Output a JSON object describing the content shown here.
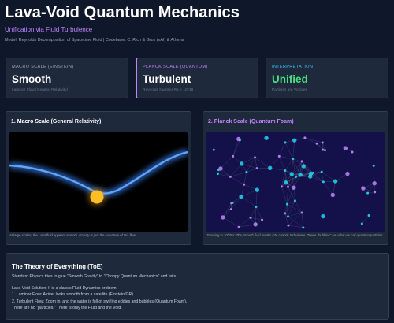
{
  "header": {
    "title": "Lava-Void Quantum Mechanics",
    "subtitle": "Unification via Fluid Turbulence",
    "model_line": "Model: Reynolds Decomposition of Spacetime Fluid | Codebase: C. Rich & Grok (xAI) & Athena"
  },
  "cards": [
    {
      "label": "MACRO SCALE (EINSTEIN)",
      "value": "Smooth",
      "note": "Laminar Flow (General Relativity)",
      "label_color": "#94a3b8",
      "value_color": "#ffffff"
    },
    {
      "label": "PLANCK SCALE (QUANTUM)",
      "value": "Turbulent",
      "note": "Reynolds Number Re > 10^18",
      "label_color": "#c084fc",
      "value_color": "#ffffff"
    },
    {
      "label": "INTERPRETATION",
      "value": "Unified",
      "note": "Particles are Vortices",
      "label_color": "#38bdf8",
      "value_color": "#4ade80"
    }
  ],
  "panels": {
    "macro": {
      "title": "1. Macro Scale (General Relativity)",
      "title_color": "#ffffff",
      "caption": "At large scales, the Lava fluid appears smooth. Gravity is just the curvature of this flow."
    },
    "planck": {
      "title": "2. Planck Scale (Quantum Foam)",
      "title_color": "#c084fc",
      "caption": "Zooming in 10^35x: The smooth fluid breaks into chaotic turbulence. These \"bubbles\" are what we call quantum particles."
    }
  },
  "toe": {
    "title": "The Theory of Everything (ToE)",
    "intro": "Standard Physics tries to glue \"Smooth Gravity\" to \"Choppy Quantum Mechanics\" and fails.",
    "lines": [
      "Lava-Void Solution: It is a classic Fluid Dynamics problem.",
      "1. Laminar Flow: A river looks smooth from a satellite (Einstein/GR).",
      "2. Turbulent Flow: Zoom in, and the water is full of swirling eddies and bubbles (Quantum Foam).",
      "There are no \"particles.\" There is only the Fluid and the Void."
    ]
  },
  "colors": {
    "background": "#0f172a",
    "card": "#1e293b",
    "accent_purple": "#c084fc",
    "accent_blue": "#38bdf8",
    "accent_green": "#4ade80",
    "wave": "#3b82f6",
    "mass": "#fbbf24",
    "particle_cyan": "#22d3ee",
    "particle_purple": "#c084fc"
  }
}
